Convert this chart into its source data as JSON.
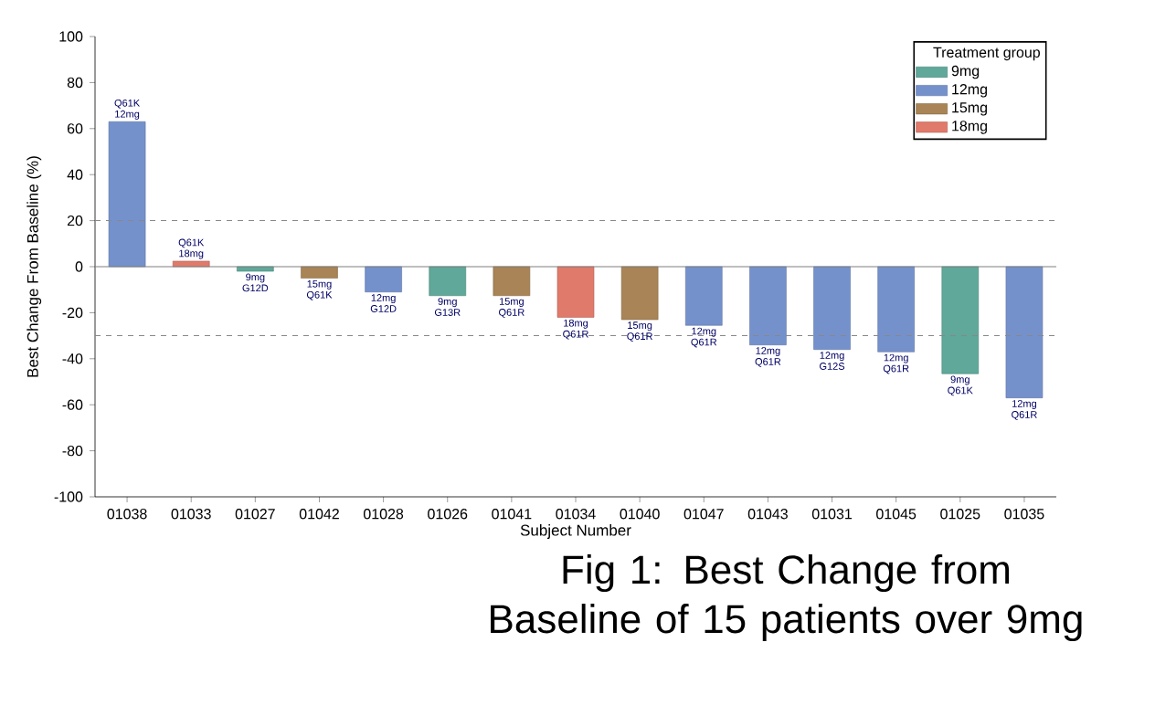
{
  "chart_data": {
    "type": "bar",
    "xlabel": "Subject Number",
    "ylabel": "Best Change From Baseline (%)",
    "legend_title": "Treatment group",
    "categories": [
      "01038",
      "01033",
      "01027",
      "01042",
      "01028",
      "01026",
      "01041",
      "01034",
      "01040",
      "01047",
      "01043",
      "01031",
      "01045",
      "01025",
      "01035"
    ],
    "series": [
      {
        "name": "9mg",
        "color": "#5fa89a",
        "values": [
          null,
          null,
          -2,
          null,
          null,
          -12.6,
          null,
          null,
          null,
          null,
          null,
          null,
          null,
          -46.5,
          null
        ]
      },
      {
        "name": "12mg",
        "color": "#7591cc",
        "values": [
          63,
          null,
          null,
          null,
          -11,
          null,
          null,
          null,
          null,
          -25.5,
          -34,
          -36,
          -37,
          null,
          -57
        ]
      },
      {
        "name": "15mg",
        "color": "#a88456",
        "values": [
          null,
          null,
          null,
          -5,
          null,
          null,
          -12.6,
          null,
          -23,
          null,
          null,
          null,
          null,
          null,
          null
        ]
      },
      {
        "name": "18mg",
        "color": "#e07a6b",
        "values": [
          null,
          2.4,
          null,
          null,
          null,
          null,
          null,
          -22,
          null,
          null,
          null,
          null,
          null,
          null,
          null
        ]
      }
    ],
    "ylim": [
      -100,
      100
    ],
    "yticks": [
      -100,
      -80,
      -60,
      -40,
      -20,
      0,
      20,
      40,
      60,
      80,
      100
    ],
    "grid": false,
    "legend": "top right",
    "ref_lines": [
      {
        "axis": "y",
        "value": 20,
        "color": "#888888",
        "line_style": "dashed"
      },
      {
        "axis": "y",
        "value": -30,
        "color": "#888888",
        "line_style": "dashed"
      }
    ],
    "annotations": [
      {
        "text": "Q61K 12mg",
        "x": "01038",
        "y": 63
      },
      {
        "text": "Q61K 18mg",
        "x": "01033",
        "y": 2.4
      },
      {
        "text": "9mg G12D",
        "x": "01027",
        "y": -2
      },
      {
        "text": "15mg Q61K",
        "x": "01042",
        "y": -5
      },
      {
        "text": "12mg G12D",
        "x": "01028",
        "y": -11
      },
      {
        "text": "9mg G13R",
        "x": "01026",
        "y": -12.6
      },
      {
        "text": "15mg Q61R",
        "x": "01041",
        "y": -12.6
      },
      {
        "text": "18mg Q61R",
        "x": "01034",
        "y": -22
      },
      {
        "text": "15mg Q61R",
        "x": "01040",
        "y": -23
      },
      {
        "text": "12mg Q61R",
        "x": "01047",
        "y": -25.5
      },
      {
        "text": "12mg Q61R",
        "x": "01043",
        "y": -34
      },
      {
        "text": "12mg G12S",
        "x": "01031",
        "y": -36
      },
      {
        "text": "12mg Q61R",
        "x": "01045",
        "y": -37
      },
      {
        "text": "9mg Q61K",
        "x": "01025",
        "y": -46.5
      },
      {
        "text": "12mg Q61R",
        "x": "01035",
        "y": -57
      },
      "Fig 1: Best Change from Baseline of 15 patients  over 9mg"
    ]
  }
}
